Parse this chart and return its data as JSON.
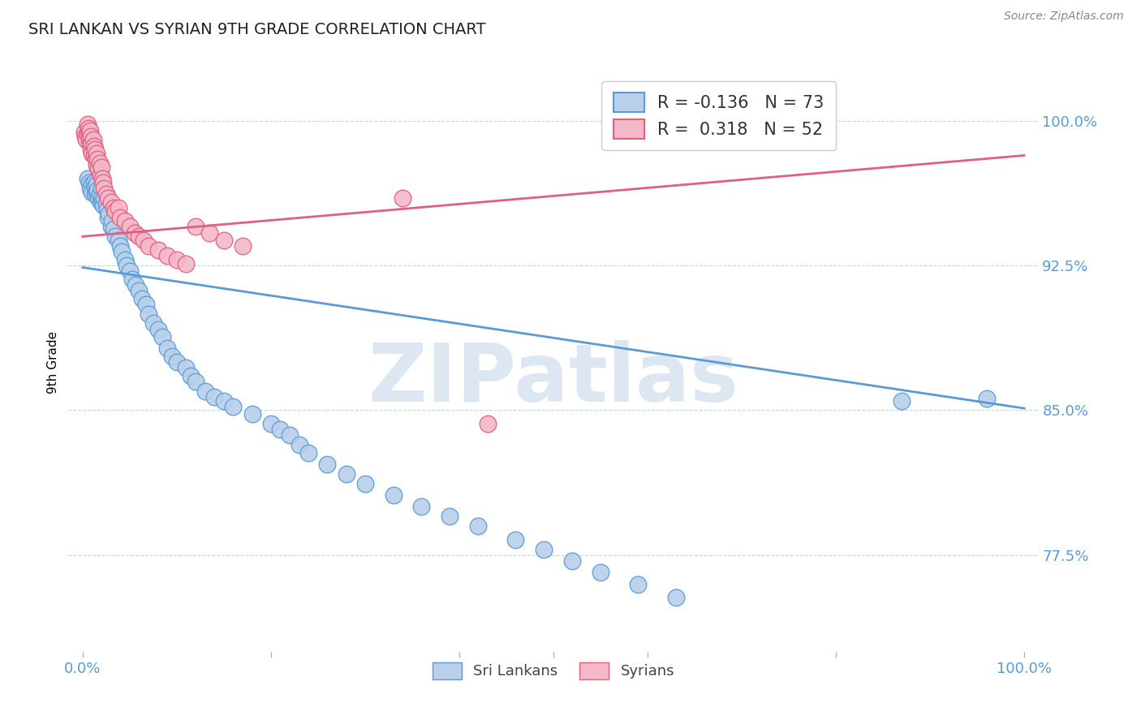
{
  "title": "SRI LANKAN VS SYRIAN 9TH GRADE CORRELATION CHART",
  "source": "Source: ZipAtlas.com",
  "ylabel": "9th Grade",
  "ylim": [
    0.725,
    1.025
  ],
  "xlim": [
    -0.015,
    1.015
  ],
  "yticks": [
    0.775,
    0.85,
    0.925,
    1.0
  ],
  "ytick_labels": [
    "77.5%",
    "85.0%",
    "92.5%",
    "100.0%"
  ],
  "blue_R": -0.136,
  "blue_N": 73,
  "pink_R": 0.318,
  "pink_N": 52,
  "blue_color": "#b8d0ea",
  "blue_edge_color": "#5b9bd5",
  "pink_color": "#f4b8c8",
  "pink_edge_color": "#e06080",
  "legend_label_blue": "Sri Lankans",
  "legend_label_pink": "Syrians",
  "watermark": "ZIPatlas",
  "watermark_color": "#c5d8ea",
  "blue_trend_x0": 0.0,
  "blue_trend_x1": 1.0,
  "blue_trend_y0": 0.924,
  "blue_trend_y1": 0.851,
  "pink_trend_x0": 0.0,
  "pink_trend_x1": 1.0,
  "pink_trend_y0": 0.94,
  "pink_trend_y1": 0.982,
  "blue_x": [
    0.005,
    0.007,
    0.008,
    0.01,
    0.01,
    0.012,
    0.013,
    0.013,
    0.015,
    0.015,
    0.016,
    0.017,
    0.018,
    0.019,
    0.02,
    0.02,
    0.021,
    0.022,
    0.023,
    0.025,
    0.026,
    0.027,
    0.028,
    0.03,
    0.031,
    0.033,
    0.035,
    0.038,
    0.04,
    0.042,
    0.045,
    0.047,
    0.05,
    0.053,
    0.056,
    0.06,
    0.063,
    0.067,
    0.07,
    0.075,
    0.08,
    0.085,
    0.09,
    0.095,
    0.1,
    0.11,
    0.115,
    0.12,
    0.13,
    0.14,
    0.15,
    0.16,
    0.18,
    0.2,
    0.21,
    0.22,
    0.23,
    0.24,
    0.26,
    0.28,
    0.3,
    0.33,
    0.36,
    0.39,
    0.42,
    0.46,
    0.49,
    0.52,
    0.55,
    0.59,
    0.63,
    0.87,
    0.96
  ],
  "blue_y": [
    0.97,
    0.968,
    0.965,
    0.967,
    0.963,
    0.968,
    0.966,
    0.962,
    0.967,
    0.963,
    0.964,
    0.96,
    0.962,
    0.958,
    0.965,
    0.96,
    0.958,
    0.956,
    0.96,
    0.957,
    0.954,
    0.95,
    0.952,
    0.945,
    0.948,
    0.944,
    0.94,
    0.938,
    0.935,
    0.932,
    0.928,
    0.925,
    0.922,
    0.918,
    0.915,
    0.912,
    0.908,
    0.905,
    0.9,
    0.895,
    0.892,
    0.888,
    0.882,
    0.878,
    0.875,
    0.872,
    0.868,
    0.865,
    0.86,
    0.857,
    0.855,
    0.852,
    0.848,
    0.843,
    0.84,
    0.837,
    0.832,
    0.828,
    0.822,
    0.817,
    0.812,
    0.806,
    0.8,
    0.795,
    0.79,
    0.783,
    0.778,
    0.772,
    0.766,
    0.76,
    0.753,
    0.855,
    0.856
  ],
  "pink_x": [
    0.002,
    0.003,
    0.004,
    0.005,
    0.005,
    0.006,
    0.007,
    0.007,
    0.008,
    0.008,
    0.009,
    0.009,
    0.01,
    0.01,
    0.011,
    0.012,
    0.012,
    0.013,
    0.014,
    0.015,
    0.015,
    0.016,
    0.017,
    0.018,
    0.019,
    0.02,
    0.021,
    0.022,
    0.023,
    0.025,
    0.027,
    0.03,
    0.033,
    0.035,
    0.038,
    0.04,
    0.045,
    0.05,
    0.055,
    0.06,
    0.065,
    0.07,
    0.08,
    0.09,
    0.1,
    0.11,
    0.12,
    0.135,
    0.15,
    0.17,
    0.34,
    0.43
  ],
  "pink_y": [
    0.994,
    0.992,
    0.99,
    0.998,
    0.993,
    0.996,
    0.994,
    0.99,
    0.995,
    0.988,
    0.992,
    0.985,
    0.988,
    0.983,
    0.99,
    0.987,
    0.982,
    0.985,
    0.98,
    0.983,
    0.977,
    0.98,
    0.975,
    0.978,
    0.972,
    0.976,
    0.97,
    0.968,
    0.965,
    0.962,
    0.96,
    0.958,
    0.955,
    0.953,
    0.955,
    0.95,
    0.948,
    0.945,
    0.942,
    0.94,
    0.938,
    0.935,
    0.933,
    0.93,
    0.928,
    0.926,
    0.945,
    0.942,
    0.938,
    0.935,
    0.96,
    0.843
  ]
}
